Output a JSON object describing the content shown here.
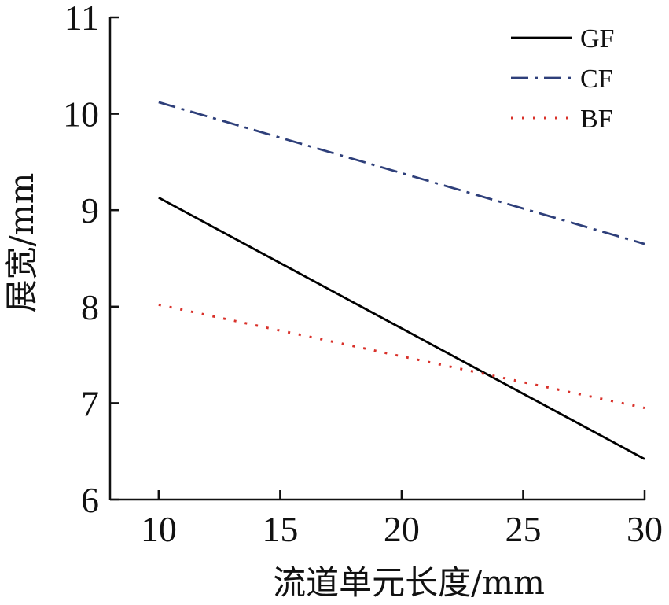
{
  "chart_data": {
    "type": "line",
    "xlabel": "流道单元长度/mm",
    "ylabel": "展宽/mm",
    "xlim": [
      8,
      30
    ],
    "ylim": [
      6,
      11
    ],
    "xticks": [
      10,
      15,
      20,
      25,
      30
    ],
    "yticks": [
      6,
      7,
      8,
      9,
      10,
      11
    ],
    "x_tick_labels": [
      "10",
      "15",
      "20",
      "25",
      "30"
    ],
    "y_tick_labels": [
      "6",
      "7",
      "8",
      "9",
      "10",
      "11"
    ],
    "grid": false,
    "legend_position": "top-right",
    "series": [
      {
        "name": "GF",
        "x": [
          10,
          30
        ],
        "y": [
          9.13,
          6.42
        ],
        "color": "#000000",
        "style": "solid"
      },
      {
        "name": "CF",
        "x": [
          10,
          30
        ],
        "y": [
          10.12,
          8.65
        ],
        "color": "#2e3f7a",
        "style": "dashdot"
      },
      {
        "name": "BF",
        "x": [
          10,
          30
        ],
        "y": [
          8.02,
          6.95
        ],
        "color": "#d9312a",
        "style": "dotted"
      }
    ]
  }
}
